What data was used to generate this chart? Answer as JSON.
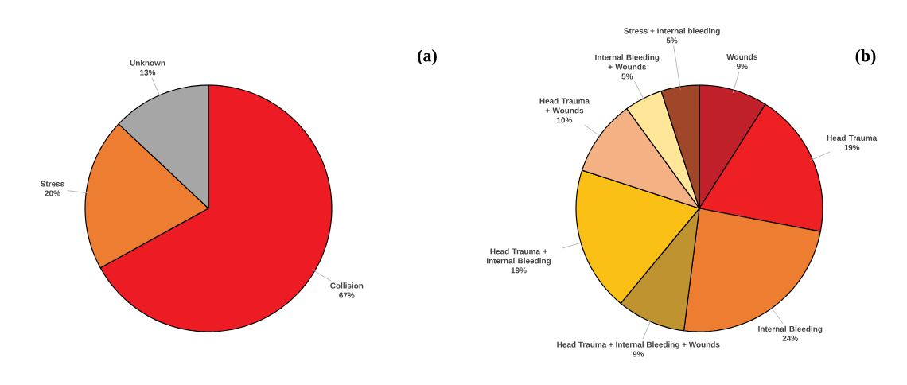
{
  "chart_data": [
    {
      "type": "pie",
      "title": "(a)",
      "categories": [
        "Collision",
        "Stress",
        "Unknown"
      ],
      "values": [
        67,
        20,
        13
      ],
      "colors": [
        "#ed1c24",
        "#ed7d31",
        "#a6a6a6"
      ],
      "value_labels": [
        "67%",
        "20%",
        "13%"
      ]
    },
    {
      "type": "pie",
      "title": "(b)",
      "categories": [
        "Wounds",
        "Head Trauma",
        "Internal Bleeding",
        "Head Trauma + Internal Bleeding + Wounds",
        "Head Trauma + Internal Bleeding",
        "Head Trauma + Wounds",
        "Internal Bleeding + Wounds",
        "Stress + Internal bleeding"
      ],
      "values": [
        9,
        19,
        24,
        9,
        19,
        10,
        5,
        5
      ],
      "colors": [
        "#c0202a",
        "#ee2024",
        "#ed7d31",
        "#bf9330",
        "#fbc016",
        "#f4b183",
        "#ffe699",
        "#a0472a"
      ],
      "value_labels": [
        "9%",
        "19%",
        "24%",
        "9%",
        "19%",
        "10%",
        "5%",
        "5%"
      ]
    }
  ]
}
